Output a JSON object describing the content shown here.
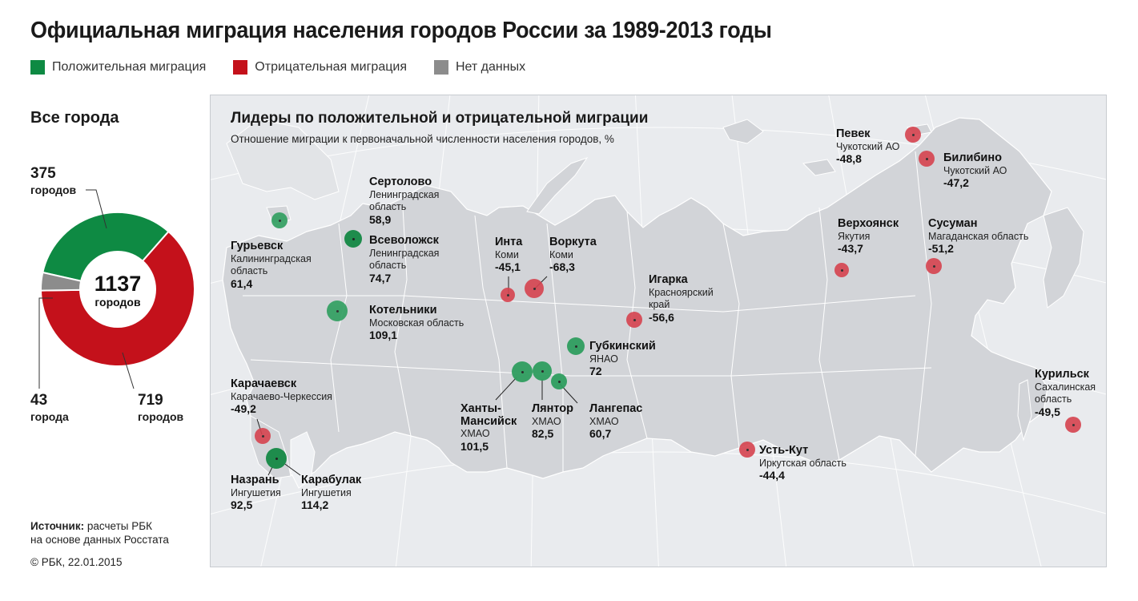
{
  "title": "Официальная миграция населения городов России за 1989-2013 годы",
  "legend": [
    {
      "label": "Положительная миграция",
      "color": "#0e8a43"
    },
    {
      "label": "Отрицательная миграция",
      "color": "#c4111b"
    },
    {
      "label": "Нет данных",
      "color": "#8c8c8c"
    }
  ],
  "summary": {
    "title": "Все города",
    "total_value": "1137",
    "total_label": "городов",
    "positive": {
      "value": "375",
      "label": "городов",
      "count": 375
    },
    "negative": {
      "value": "719",
      "label": "городов",
      "count": 719
    },
    "nodata": {
      "value": "43",
      "label": "города",
      "count": 43
    }
  },
  "source": {
    "label": "Источник:",
    "text1": "расчеты РБК",
    "text2": "на основе данных Росстата"
  },
  "copyright": "© РБК, 22.01.2015",
  "map": {
    "title": "Лидеры по положительной и отрицательной миграции",
    "subtitle": "Отношение миграции к первоначальной численности населения городов, %"
  },
  "cities": [
    {
      "name": "Гурьевск",
      "region1": "Калининградская",
      "region2": "область",
      "value": "61,4",
      "type": "positive"
    },
    {
      "name": "Сертолово",
      "region1": "Ленинградская",
      "region2": "область",
      "value": "58,9",
      "type": "positive"
    },
    {
      "name": "Всеволожск",
      "region1": "Ленинградская",
      "region2": "область",
      "value": "74,7",
      "type": "positive"
    },
    {
      "name": "Котельники",
      "region1": "Московская область",
      "region2": "",
      "value": "109,1",
      "type": "positive"
    },
    {
      "name": "Инта",
      "region1": "Коми",
      "region2": "",
      "value": "-45,1",
      "type": "negative"
    },
    {
      "name": "Воркута",
      "region1": "Коми",
      "region2": "",
      "value": "-68,3",
      "type": "negative"
    },
    {
      "name": "Игарка",
      "region1": "Красноярский",
      "region2": "край",
      "value": "-56,6",
      "type": "negative"
    },
    {
      "name": "Губкинский",
      "region1": "ЯНАО",
      "region2": "",
      "value": "72",
      "type": "positive"
    },
    {
      "name": "Ханты-",
      "name2": "Мансийск",
      "region1": "ХМАО",
      "region2": "",
      "value": "101,5",
      "type": "positive"
    },
    {
      "name": "Лянтор",
      "region1": "ХМАО",
      "region2": "",
      "value": "82,5",
      "type": "positive"
    },
    {
      "name": "Лангепас",
      "region1": "ХМАО",
      "region2": "",
      "value": "60,7",
      "type": "positive"
    },
    {
      "name": "Карачаевск",
      "region1": "Карачаево-Черкессия",
      "region2": "",
      "value": "-49,2",
      "type": "negative"
    },
    {
      "name": "Назрань",
      "region1": "Ингушетия",
      "region2": "",
      "value": "92,5",
      "type": "positive"
    },
    {
      "name": "Карабулак",
      "region1": "Ингушетия",
      "region2": "",
      "value": "114,2",
      "type": "positive"
    },
    {
      "name": "Певек",
      "region1": "Чукотский АО",
      "region2": "",
      "value": "-48,8",
      "type": "negative"
    },
    {
      "name": "Билибино",
      "region1": "Чукотский АО",
      "region2": "",
      "value": "-47,2",
      "type": "negative"
    },
    {
      "name": "Верхоянск",
      "region1": "Якутия",
      "region2": "",
      "value": "-43,7",
      "type": "negative"
    },
    {
      "name": "Сусуман",
      "region1": "Магаданская область",
      "region2": "",
      "value": "-51,2",
      "type": "negative"
    },
    {
      "name": "Усть-Кут",
      "region1": "Иркутская область",
      "region2": "",
      "value": "-44,4",
      "type": "negative"
    },
    {
      "name": "Курильск",
      "region1": "Сахалинская",
      "region2": "область",
      "value": "-49,5",
      "type": "negative"
    }
  ]
}
